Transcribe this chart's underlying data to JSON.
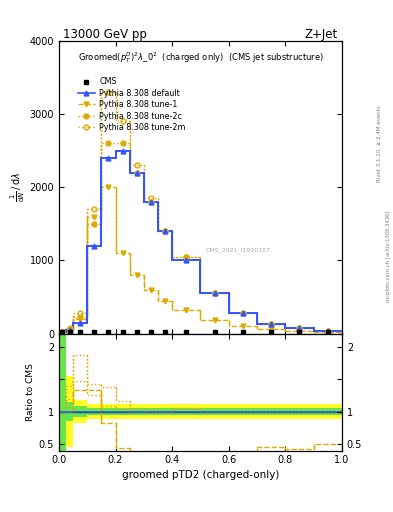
{
  "title_top": "13000 GeV pp",
  "title_right": "Z+Jet",
  "plot_title": "Groomed$(p_T^D)^2\\lambda\\_0^2$  (charged only)  (CMS jet substructure)",
  "xlabel": "groomed pTD2 (charged-only)",
  "watermark": "CMS_2021_I1920187",
  "rivet_text": "Rivet 3.1.10, ≥ 2.4M events",
  "arxiv_text": "mcplots.cern.ch [arXiv:1306.3436]",
  "x_bins": [
    0.0,
    0.025,
    0.05,
    0.1,
    0.15,
    0.2,
    0.25,
    0.3,
    0.35,
    0.4,
    0.5,
    0.6,
    0.7,
    0.8,
    0.9,
    1.0
  ],
  "default_y": [
    20,
    50,
    150,
    1200,
    2400,
    2500,
    2200,
    1800,
    1400,
    1000,
    550,
    280,
    130,
    70,
    30
  ],
  "tune1_y": [
    20,
    50,
    200,
    1600,
    2000,
    1100,
    800,
    600,
    450,
    320,
    180,
    100,
    60,
    30,
    15
  ],
  "tune2c_y": [
    20,
    60,
    220,
    1500,
    2600,
    2600,
    2200,
    1800,
    1400,
    1050,
    550,
    280,
    130,
    70,
    30
  ],
  "tune2m_y": [
    20,
    70,
    280,
    1700,
    3300,
    2900,
    2300,
    1850,
    1400,
    1050,
    550,
    280,
    130,
    70,
    30
  ],
  "cms_y": [
    0,
    0,
    0,
    0,
    0,
    0,
    0,
    0,
    0,
    0,
    0,
    0,
    0,
    0,
    0
  ],
  "ratio_default": [
    1.0,
    1.0,
    1.0,
    1.0,
    1.0,
    1.0,
    1.0,
    1.0,
    1.0,
    1.0,
    1.0,
    1.0,
    1.0,
    1.0,
    1.0
  ],
  "ratio_tune1": [
    1.0,
    1.0,
    1.33,
    1.33,
    0.83,
    0.44,
    0.36,
    0.33,
    0.32,
    0.32,
    0.33,
    0.36,
    0.46,
    0.43,
    0.5
  ],
  "ratio_tune2c": [
    1.0,
    1.2,
    1.47,
    1.25,
    1.08,
    1.04,
    1.0,
    1.0,
    1.0,
    1.05,
    1.0,
    1.0,
    1.0,
    1.0,
    1.0
  ],
  "ratio_tune2m": [
    1.0,
    1.4,
    1.87,
    1.42,
    1.38,
    1.16,
    1.05,
    1.03,
    1.0,
    1.05,
    1.0,
    1.0,
    1.0,
    1.0,
    1.0
  ],
  "color_default": "#3355ff",
  "color_tune1": "#ddaa00",
  "color_tune2c": "#ddaa00",
  "color_tune2m": "#ddaa00",
  "color_cms": "#000000",
  "green_band_lo": [
    0.4,
    0.85,
    0.92,
    0.95,
    0.95,
    0.95,
    0.95,
    0.95,
    0.95,
    0.95,
    0.95,
    0.95,
    0.95,
    0.95,
    0.95
  ],
  "green_band_hi": [
    2.2,
    1.15,
    1.08,
    1.05,
    1.05,
    1.05,
    1.05,
    1.05,
    1.05,
    1.05,
    1.05,
    1.05,
    1.05,
    1.05,
    1.05
  ],
  "yellow_band_lo": [
    0.4,
    0.45,
    0.82,
    0.88,
    0.88,
    0.88,
    0.88,
    0.88,
    0.88,
    0.88,
    0.88,
    0.88,
    0.88,
    0.88,
    0.88
  ],
  "yellow_band_hi": [
    2.2,
    1.55,
    1.18,
    1.12,
    1.12,
    1.12,
    1.12,
    1.12,
    1.12,
    1.12,
    1.12,
    1.12,
    1.12,
    1.12,
    1.12
  ],
  "xlim": [
    0.0,
    1.0
  ],
  "ylim_main": [
    0,
    4000
  ],
  "ylim_ratio": [
    0.4,
    2.2
  ]
}
